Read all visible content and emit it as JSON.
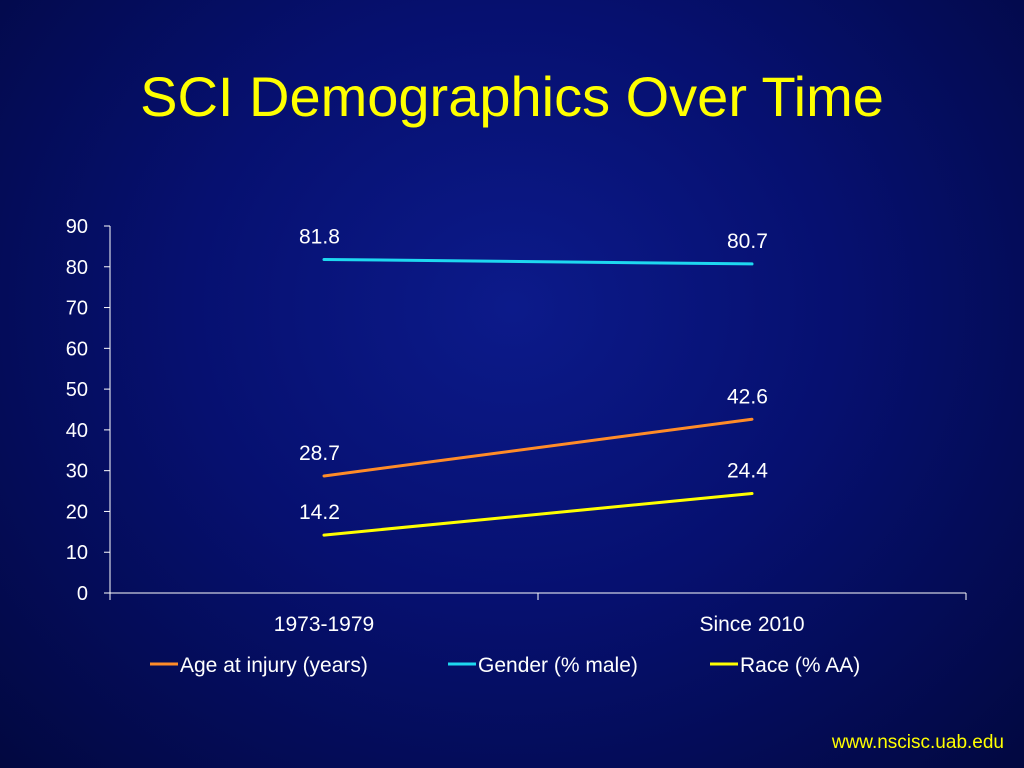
{
  "slide": {
    "title": "SCI Demographics Over Time",
    "footer": "www.nscisc.uab.edu"
  },
  "chart_data": {
    "type": "line",
    "categories": [
      "1973-1979",
      "Since 2010"
    ],
    "ylim": [
      0,
      90
    ],
    "yticks": [
      0,
      10,
      20,
      30,
      40,
      50,
      60,
      70,
      80,
      90
    ],
    "legend_position": "bottom",
    "grid": false,
    "series": [
      {
        "name": "Age at injury (years)",
        "values": [
          28.7,
          42.6
        ],
        "labels": [
          "28.7",
          "42.6"
        ],
        "color": "#ff8c28"
      },
      {
        "name": "Gender (% male)",
        "values": [
          81.8,
          80.7
        ],
        "labels": [
          "81.8",
          "80.7"
        ],
        "color": "#1ed8f0"
      },
      {
        "name": "Race (% AA)",
        "values": [
          14.2,
          24.4
        ],
        "labels": [
          "14.2",
          "24.4"
        ],
        "color": "#ffff00"
      }
    ]
  }
}
